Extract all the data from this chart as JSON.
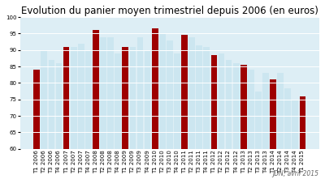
{
  "title": "Evolution du panier moyen trimestriel depuis 2006 (en euros)",
  "annotation": "JDN, avril 2015",
  "ylim": [
    60,
    100
  ],
  "yticks": [
    60,
    65,
    70,
    75,
    80,
    85,
    90,
    95,
    100
  ],
  "categories": [
    "T1 2006",
    "T2 2006",
    "T3 2006",
    "T4 2006",
    "T1 2007",
    "T2 2007",
    "T3 2007",
    "T4 2007",
    "T1 2008",
    "T2 2008",
    "T3 2008",
    "T4 2008",
    "T1 2009",
    "T2 2009",
    "T3 2009",
    "T4 2009",
    "T1 2010",
    "T2 2010",
    "T3 2010",
    "T4 2010",
    "T1 2011",
    "T2 2011",
    "T3 2011",
    "T4 2011",
    "T1 2012",
    "T2 2012",
    "T3 2012",
    "T4 2012",
    "T1 2013",
    "T2 2013",
    "T3 2013",
    "T4 2013",
    "T1 2014",
    "T2 2014",
    "T3 2014",
    "T4 2014",
    "T1 2015"
  ],
  "values": [
    84,
    90,
    87,
    86,
    91,
    91,
    92,
    90,
    96,
    94,
    94,
    89,
    91,
    91,
    94,
    90,
    96.5,
    95,
    93,
    89,
    94.5,
    94,
    91.5,
    91,
    88.5,
    89,
    87,
    86,
    85.5,
    84,
    77.5,
    83,
    81,
    83,
    78.5,
    75,
    76
  ],
  "bar_colors": [
    "#9E0000",
    "#cce6f0",
    "#cce6f0",
    "#cce6f0",
    "#9E0000",
    "#cce6f0",
    "#cce6f0",
    "#cce6f0",
    "#9E0000",
    "#cce6f0",
    "#cce6f0",
    "#cce6f0",
    "#9E0000",
    "#cce6f0",
    "#cce6f0",
    "#cce6f0",
    "#9E0000",
    "#cce6f0",
    "#cce6f0",
    "#cce6f0",
    "#9E0000",
    "#cce6f0",
    "#cce6f0",
    "#cce6f0",
    "#9E0000",
    "#cce6f0",
    "#cce6f0",
    "#cce6f0",
    "#9E0000",
    "#cce6f0",
    "#cce6f0",
    "#cce6f0",
    "#9E0000",
    "#cce6f0",
    "#cce6f0",
    "#cce6f0",
    "#9E0000"
  ],
  "ymin": 60,
  "background_color": "#ffffff",
  "plot_bg_color": "#ddeef5",
  "grid_color": "#ffffff",
  "title_fontsize": 8.5,
  "tick_fontsize": 5,
  "annotation_fontsize": 5.5
}
